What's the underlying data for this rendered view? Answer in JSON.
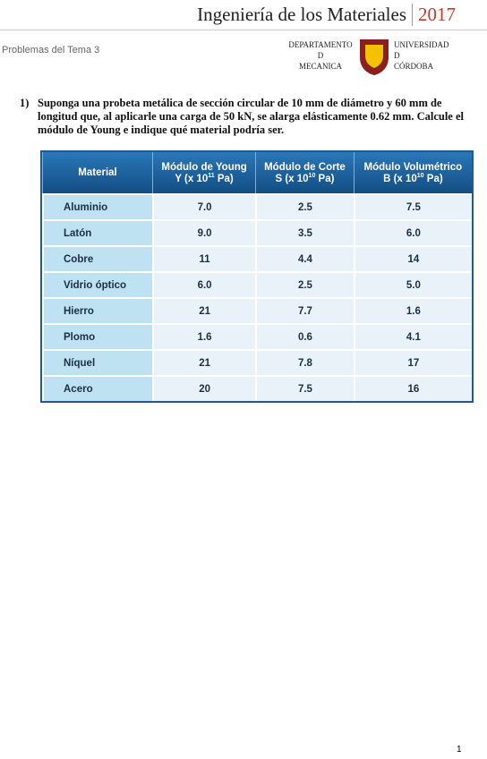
{
  "header": {
    "title": "Ingeniería de los Materiales",
    "year": "2017",
    "subtitle": "Problemas del Tema 3",
    "logo": {
      "left": [
        "DEPARTAMENTO",
        "D",
        "MECANICA"
      ],
      "right": [
        "UNIVERSIDAD",
        "D",
        "CÓRDOBA"
      ]
    }
  },
  "problem": {
    "number": "1)",
    "text": "Suponga una probeta metálica de sección circular de 10 mm de diámetro y 60 mm de longitud que, al aplicarle una carga de 50 kN, se alarga elásticamente 0.62 mm. Calcule el módulo de Young e indique qué material podría ser."
  },
  "table": {
    "columns": [
      {
        "line1": "Material"
      },
      {
        "line1": "Módulo de Young",
        "unit_before": "Y (x 10",
        "exponent": "11",
        "unit_after": " Pa)"
      },
      {
        "line1": "Módulo de Corte",
        "unit_before": "S (x 10",
        "exponent": "10",
        "unit_after": " Pa)"
      },
      {
        "line1": "Módulo Volumétrico",
        "unit_before": "B (x 10",
        "exponent": "10",
        "unit_after": " Pa)"
      }
    ],
    "rows": [
      [
        "Aluminio",
        "7.0",
        "2.5",
        "7.5"
      ],
      [
        "Latón",
        "9.0",
        "3.5",
        "6.0"
      ],
      [
        "Cobre",
        "11",
        "4.4",
        "14"
      ],
      [
        "Vidrio óptico",
        "6.0",
        "2.5",
        "5.0"
      ],
      [
        "Hierro",
        "21",
        "7.7",
        "1.6"
      ],
      [
        "Plomo",
        "1.6",
        "0.6",
        "4.1"
      ],
      [
        "Níquel",
        "21",
        "7.8",
        "17"
      ],
      [
        "Acero",
        "20",
        "7.5",
        "16"
      ]
    ]
  },
  "footer": {
    "page": "1"
  }
}
